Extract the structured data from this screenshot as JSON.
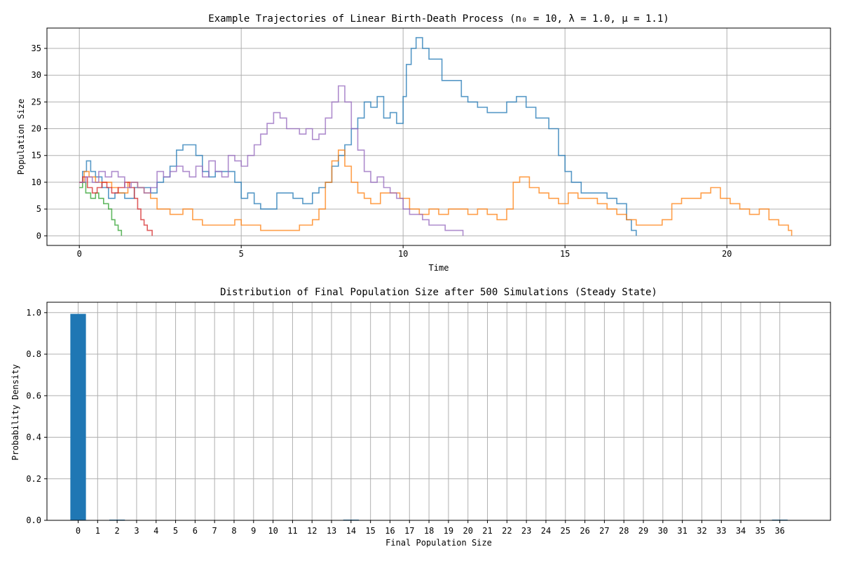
{
  "chart_data": [
    {
      "type": "line",
      "title": "Example Trajectories of Linear Birth-Death Process ($n_0 = 10, \\lambda = 1.0, \\mu = 1.1$)",
      "title_display": "Example Trajectories of Linear Birth-Death Process (n₀ = 10, λ = 1.0, μ = 1.1)",
      "xlabel": "Time",
      "ylabel": "Population Size",
      "xlim": [
        -1,
        23.2
      ],
      "ylim": [
        -1.8,
        38.8
      ],
      "xticks": [
        0,
        5,
        10,
        15,
        20
      ],
      "yticks": [
        0,
        5,
        10,
        15,
        20,
        25,
        30,
        35
      ],
      "grid": true,
      "series": [
        {
          "color": "#1f77b4",
          "points": [
            [
              0,
              10
            ],
            [
              0.1,
              12
            ],
            [
              0.22,
              14
            ],
            [
              0.35,
              12
            ],
            [
              0.5,
              11
            ],
            [
              0.7,
              9
            ],
            [
              0.9,
              7
            ],
            [
              1.1,
              8
            ],
            [
              1.4,
              7
            ],
            [
              1.7,
              9
            ],
            [
              2.0,
              9
            ],
            [
              2.2,
              8
            ],
            [
              2.4,
              10
            ],
            [
              2.6,
              11
            ],
            [
              2.8,
              13
            ],
            [
              3.0,
              16
            ],
            [
              3.2,
              17
            ],
            [
              3.45,
              17
            ],
            [
              3.6,
              15
            ],
            [
              3.8,
              12
            ],
            [
              4.0,
              11
            ],
            [
              4.2,
              12
            ],
            [
              4.5,
              12
            ],
            [
              4.8,
              10
            ],
            [
              5.0,
              7
            ],
            [
              5.2,
              8
            ],
            [
              5.4,
              6
            ],
            [
              5.6,
              5
            ],
            [
              5.9,
              5
            ],
            [
              6.1,
              8
            ],
            [
              6.4,
              8
            ],
            [
              6.6,
              7
            ],
            [
              6.9,
              6
            ],
            [
              7.2,
              8
            ],
            [
              7.4,
              9
            ],
            [
              7.6,
              10
            ],
            [
              7.8,
              13
            ],
            [
              8.0,
              15
            ],
            [
              8.2,
              17
            ],
            [
              8.4,
              20
            ],
            [
              8.6,
              22
            ],
            [
              8.8,
              25
            ],
            [
              9.0,
              24
            ],
            [
              9.2,
              26
            ],
            [
              9.4,
              22
            ],
            [
              9.6,
              23
            ],
            [
              9.8,
              21
            ],
            [
              10.0,
              26
            ],
            [
              10.1,
              32
            ],
            [
              10.25,
              35
            ],
            [
              10.4,
              37
            ],
            [
              10.6,
              35
            ],
            [
              10.8,
              33
            ],
            [
              11.0,
              33
            ],
            [
              11.2,
              29
            ],
            [
              11.5,
              29
            ],
            [
              11.8,
              26
            ],
            [
              12.0,
              25
            ],
            [
              12.3,
              24
            ],
            [
              12.6,
              23
            ],
            [
              12.9,
              23
            ],
            [
              13.2,
              25
            ],
            [
              13.5,
              26
            ],
            [
              13.8,
              24
            ],
            [
              14.1,
              22
            ],
            [
              14.5,
              20
            ],
            [
              14.8,
              15
            ],
            [
              15.0,
              12
            ],
            [
              15.2,
              10
            ],
            [
              15.5,
              8
            ],
            [
              15.8,
              8
            ],
            [
              16.1,
              8
            ],
            [
              16.3,
              7
            ],
            [
              16.6,
              6
            ],
            [
              16.9,
              3
            ],
            [
              17.05,
              1
            ],
            [
              17.2,
              0
            ]
          ]
        },
        {
          "color": "#ff7f0e",
          "points": [
            [
              0,
              10
            ],
            [
              0.15,
              12
            ],
            [
              0.3,
              11
            ],
            [
              0.5,
              10
            ],
            [
              0.8,
              10
            ],
            [
              1.0,
              9
            ],
            [
              1.2,
              8
            ],
            [
              1.5,
              10
            ],
            [
              1.8,
              9
            ],
            [
              2.0,
              8
            ],
            [
              2.2,
              7
            ],
            [
              2.4,
              5
            ],
            [
              2.6,
              5
            ],
            [
              2.8,
              4
            ],
            [
              3.0,
              4
            ],
            [
              3.2,
              5
            ],
            [
              3.5,
              3
            ],
            [
              3.8,
              2
            ],
            [
              4.0,
              2
            ],
            [
              4.5,
              2
            ],
            [
              4.8,
              3
            ],
            [
              5.0,
              2
            ],
            [
              5.3,
              2
            ],
            [
              5.6,
              1
            ],
            [
              6.0,
              1
            ],
            [
              6.4,
              1
            ],
            [
              6.8,
              2
            ],
            [
              7.0,
              2
            ],
            [
              7.2,
              3
            ],
            [
              7.4,
              5
            ],
            [
              7.6,
              10
            ],
            [
              7.8,
              14
            ],
            [
              8.0,
              16
            ],
            [
              8.2,
              13
            ],
            [
              8.4,
              10
            ],
            [
              8.6,
              8
            ],
            [
              8.8,
              7
            ],
            [
              9.0,
              6
            ],
            [
              9.3,
              8
            ],
            [
              9.6,
              8
            ],
            [
              9.9,
              7
            ],
            [
              10.2,
              5
            ],
            [
              10.5,
              4
            ],
            [
              10.8,
              5
            ],
            [
              11.1,
              4
            ],
            [
              11.4,
              5
            ],
            [
              11.7,
              5
            ],
            [
              12.0,
              4
            ],
            [
              12.3,
              5
            ],
            [
              12.6,
              4
            ],
            [
              12.9,
              3
            ],
            [
              13.2,
              5
            ],
            [
              13.4,
              10
            ],
            [
              13.6,
              11
            ],
            [
              13.9,
              9
            ],
            [
              14.2,
              8
            ],
            [
              14.5,
              7
            ],
            [
              14.8,
              6
            ],
            [
              15.1,
              8
            ],
            [
              15.4,
              7
            ],
            [
              15.7,
              7
            ],
            [
              16.0,
              6
            ],
            [
              16.3,
              5
            ],
            [
              16.6,
              4
            ],
            [
              16.9,
              3
            ],
            [
              17.2,
              2
            ],
            [
              17.6,
              2
            ],
            [
              18.0,
              3
            ],
            [
              18.3,
              6
            ],
            [
              18.6,
              7
            ],
            [
              18.9,
              7
            ],
            [
              19.2,
              8
            ],
            [
              19.5,
              9
            ],
            [
              19.8,
              7
            ],
            [
              20.1,
              6
            ],
            [
              20.4,
              5
            ],
            [
              20.7,
              4
            ],
            [
              21.0,
              5
            ],
            [
              21.3,
              3
            ],
            [
              21.6,
              2
            ],
            [
              21.9,
              1
            ],
            [
              22.0,
              0
            ]
          ]
        },
        {
          "color": "#2ca02c",
          "points": [
            [
              0,
              9
            ],
            [
              0.1,
              10
            ],
            [
              0.2,
              8
            ],
            [
              0.35,
              7
            ],
            [
              0.5,
              8
            ],
            [
              0.6,
              7
            ],
            [
              0.75,
              6
            ],
            [
              0.9,
              5
            ],
            [
              1.0,
              3
            ],
            [
              1.1,
              2
            ],
            [
              1.2,
              1
            ],
            [
              1.3,
              0
            ]
          ]
        },
        {
          "color": "#d62728",
          "points": [
            [
              0,
              10
            ],
            [
              0.1,
              11
            ],
            [
              0.25,
              9
            ],
            [
              0.4,
              8
            ],
            [
              0.55,
              9
            ],
            [
              0.7,
              10
            ],
            [
              0.85,
              9
            ],
            [
              1.0,
              8
            ],
            [
              1.2,
              9
            ],
            [
              1.4,
              10
            ],
            [
              1.55,
              9
            ],
            [
              1.7,
              7
            ],
            [
              1.8,
              5
            ],
            [
              1.9,
              3
            ],
            [
              2.0,
              2
            ],
            [
              2.1,
              1
            ],
            [
              2.25,
              0
            ]
          ]
        },
        {
          "color": "#9467bd",
          "points": [
            [
              0,
              10
            ],
            [
              0.2,
              11
            ],
            [
              0.4,
              10
            ],
            [
              0.6,
              12
            ],
            [
              0.8,
              11
            ],
            [
              1.0,
              12
            ],
            [
              1.2,
              11
            ],
            [
              1.4,
              9
            ],
            [
              1.6,
              10
            ],
            [
              1.8,
              9
            ],
            [
              2.0,
              8
            ],
            [
              2.2,
              9
            ],
            [
              2.4,
              12
            ],
            [
              2.6,
              11
            ],
            [
              2.8,
              12
            ],
            [
              3.0,
              13
            ],
            [
              3.2,
              12
            ],
            [
              3.4,
              11
            ],
            [
              3.6,
              13
            ],
            [
              3.8,
              11
            ],
            [
              4.0,
              14
            ],
            [
              4.2,
              12
            ],
            [
              4.4,
              11
            ],
            [
              4.6,
              15
            ],
            [
              4.8,
              14
            ],
            [
              5.0,
              13
            ],
            [
              5.2,
              15
            ],
            [
              5.4,
              17
            ],
            [
              5.6,
              19
            ],
            [
              5.8,
              21
            ],
            [
              6.0,
              23
            ],
            [
              6.2,
              22
            ],
            [
              6.4,
              20
            ],
            [
              6.6,
              20
            ],
            [
              6.8,
              19
            ],
            [
              7.0,
              20
            ],
            [
              7.2,
              18
            ],
            [
              7.4,
              19
            ],
            [
              7.6,
              22
            ],
            [
              7.8,
              25
            ],
            [
              8.0,
              28
            ],
            [
              8.2,
              25
            ],
            [
              8.4,
              20
            ],
            [
              8.6,
              16
            ],
            [
              8.8,
              12
            ],
            [
              9.0,
              10
            ],
            [
              9.2,
              11
            ],
            [
              9.4,
              9
            ],
            [
              9.6,
              8
            ],
            [
              9.8,
              7
            ],
            [
              10.0,
              5
            ],
            [
              10.2,
              4
            ],
            [
              10.4,
              4
            ],
            [
              10.6,
              3
            ],
            [
              10.8,
              2
            ],
            [
              11.0,
              2
            ],
            [
              11.3,
              1
            ],
            [
              11.6,
              1
            ],
            [
              11.85,
              0
            ]
          ]
        }
      ]
    },
    {
      "type": "bar",
      "title": "Distribution of Final Population Size after 500 Simulations (Steady State)",
      "xlabel": "Final Population Size",
      "ylabel": "Probability Density",
      "categories": [
        "0",
        "1",
        "2",
        "3",
        "4",
        "5",
        "6",
        "7",
        "8",
        "9",
        "10",
        "11",
        "12",
        "13",
        "14",
        "15",
        "16",
        "17",
        "18",
        "19",
        "20",
        "21",
        "22",
        "23",
        "24",
        "25",
        "26",
        "27",
        "28",
        "29",
        "30",
        "31",
        "32",
        "33",
        "34",
        "35",
        "36"
      ],
      "values": [
        0.994,
        0,
        0.002,
        0,
        0,
        0,
        0,
        0,
        0,
        0,
        0,
        0,
        0,
        0,
        0.002,
        0,
        0,
        0,
        0,
        0,
        0,
        0,
        0,
        0,
        0,
        0,
        0,
        0,
        0,
        0,
        0,
        0,
        0,
        0,
        0,
        0,
        0.002
      ],
      "ylim": [
        0,
        1.05
      ],
      "yticks": [
        0.0,
        0.2,
        0.4,
        0.6,
        0.8,
        1.0
      ],
      "ytick_labels": [
        "0.0",
        "0.2",
        "0.4",
        "0.6",
        "0.8",
        "1.0"
      ],
      "color": "#1f77b4",
      "grid": true
    }
  ]
}
